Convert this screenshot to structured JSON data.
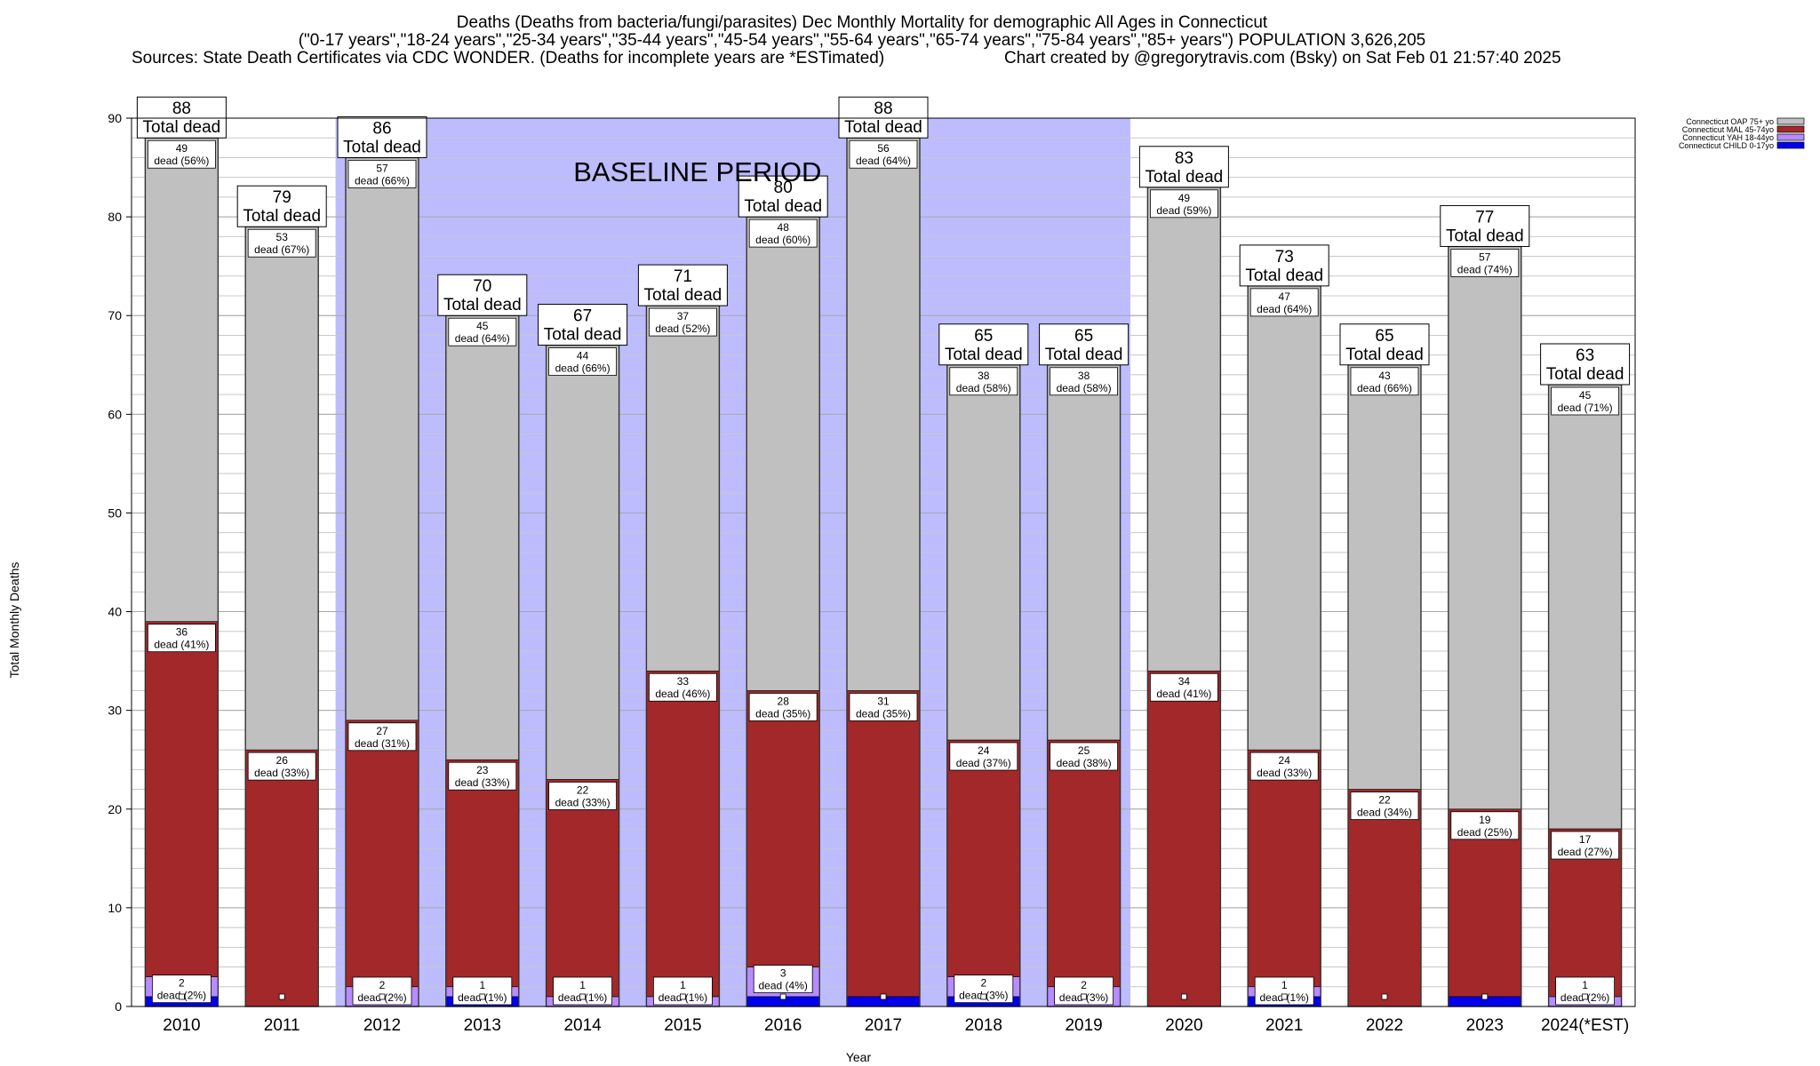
{
  "chart_data": {
    "type": "bar",
    "stacked": true,
    "title": "Deaths (Deaths from bacteria/fungi/parasites) Dec Monthly Mortality for demographic All Ages in Connecticut",
    "subtitle": "(\"0-17 years\",\"18-24 years\",\"25-34 years\",\"35-44 years\",\"45-54 years\",\"55-64 years\",\"65-74 years\",\"75-84 years\",\"85+ years\") POPULATION 3,626,205",
    "sources": "Sources: State Death Certificates via CDC WONDER. (Deaths for incomplete years are *ESTimated)",
    "credit": "Chart created by @gregorytravis.com (Bsky) on Sat Feb 01 21:57:40 2025",
    "xlabel": "Year",
    "ylabel": "Total Monthly Deaths",
    "ylim": [
      0,
      90
    ],
    "yticks": [
      0,
      10,
      20,
      30,
      40,
      50,
      60,
      70,
      80,
      90
    ],
    "minor_grid_step": 2,
    "grid": true,
    "legend_position": "top-right",
    "annotation": {
      "text": "BASELINE PERIOD",
      "x_from": "2012",
      "x_to": "2019"
    },
    "categories": [
      "2010",
      "2011",
      "2012",
      "2013",
      "2014",
      "2015",
      "2016",
      "2017",
      "2018",
      "2019",
      "2020",
      "2021",
      "2022",
      "2023",
      "2024(*EST)"
    ],
    "totals": [
      88,
      79,
      86,
      70,
      67,
      71,
      80,
      88,
      65,
      65,
      83,
      73,
      65,
      77,
      63
    ],
    "total_suffix": "Total dead",
    "series": [
      {
        "name": "Connecticut CHILD 0-17yo",
        "color": "#0000ee",
        "values": [
          1,
          0,
          0,
          1,
          0,
          0,
          1,
          1,
          1,
          0,
          0,
          1,
          0,
          1,
          0
        ]
      },
      {
        "name": "Connecticut YAH 18-44yo",
        "color": "#b78cff",
        "values": [
          2,
          0,
          2,
          1,
          1,
          1,
          3,
          0,
          2,
          2,
          0,
          1,
          0,
          0,
          1
        ]
      },
      {
        "name": "Connecticut MAL 45-74yo",
        "color": "#a2282a",
        "values": [
          36,
          26,
          27,
          23,
          22,
          33,
          28,
          31,
          24,
          25,
          34,
          24,
          22,
          19,
          17
        ]
      },
      {
        "name": "Connecticut OAP 75+ yo",
        "color": "#c0c0c0",
        "values": [
          49,
          53,
          57,
          45,
          44,
          37,
          48,
          56,
          38,
          38,
          49,
          47,
          43,
          57,
          45
        ]
      }
    ],
    "labels": {
      "CHILD": [
        "",
        "",
        "",
        "",
        "",
        "",
        "",
        "",
        "",
        "",
        "",
        "",
        "",
        "",
        ""
      ],
      "YAH": [
        "dead (2%)",
        "",
        "dead (2%)",
        "dead (1%)",
        "dead (1%)",
        "dead (1%)",
        "dead (4%)",
        "",
        "dead (3%)",
        "dead (3%)",
        "",
        "dead (1%)",
        "",
        "",
        "dead (2%)"
      ],
      "MAL": [
        "dead (41%)",
        "dead (33%)",
        "dead (31%)",
        "dead (33%)",
        "dead (33%)",
        "dead (46%)",
        "dead (35%)",
        "dead (35%)",
        "dead (37%)",
        "dead (38%)",
        "dead (41%)",
        "dead (33%)",
        "dead (34%)",
        "dead (25%)",
        "dead (27%)"
      ],
      "OAP": [
        "dead (56%)",
        "dead (67%)",
        "dead (66%)",
        "dead (64%)",
        "dead (66%)",
        "dead (52%)",
        "dead (60%)",
        "dead (64%)",
        "dead (58%)",
        "dead (58%)",
        "dead (59%)",
        "dead (64%)",
        "dead (66%)",
        "dead (74%)",
        "dead (71%)"
      ]
    },
    "colors": {
      "baseline_band": "#bcbcff",
      "plot_bg": "#ffffff",
      "grid": "#c8c8c8",
      "axis": "#000000"
    }
  }
}
